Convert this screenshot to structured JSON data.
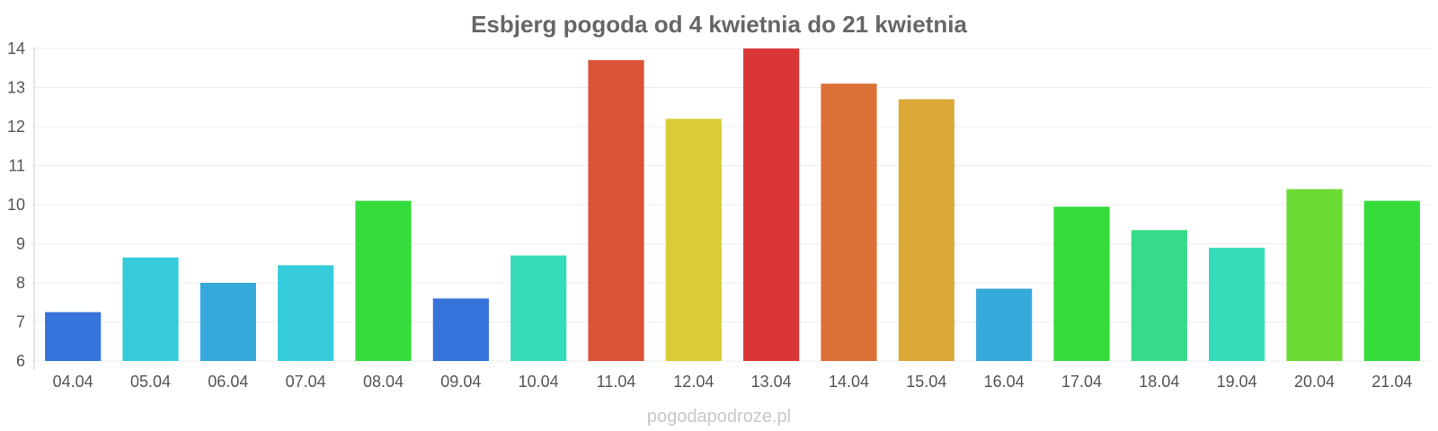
{
  "chart_data": {
    "type": "bar",
    "title": "Esbjerg pogoda od 4 kwietnia do 21 kwietnia",
    "xlabel": "",
    "ylabel": "",
    "ylim": [
      6,
      14
    ],
    "yticks": [
      6,
      7,
      8,
      9,
      10,
      11,
      12,
      13,
      14
    ],
    "grid": true,
    "categories": [
      "04.04",
      "05.04",
      "06.04",
      "07.04",
      "08.04",
      "09.04",
      "10.04",
      "11.04",
      "12.04",
      "13.04",
      "14.04",
      "15.04",
      "16.04",
      "17.04",
      "18.04",
      "19.04",
      "20.04",
      "21.04"
    ],
    "values": [
      7.25,
      8.65,
      8.0,
      8.45,
      10.1,
      7.6,
      8.7,
      13.7,
      12.2,
      14.0,
      13.1,
      12.7,
      7.85,
      9.95,
      9.35,
      8.9,
      10.4,
      10.1
    ],
    "colors": [
      "#3674db",
      "#36cbdb",
      "#36a9db",
      "#36cbdb",
      "#36db3c",
      "#3674db",
      "#36dbb9",
      "#db5236",
      "#dbcb36",
      "#db3636",
      "#db7036",
      "#dba736",
      "#36a9db",
      "#36db3c",
      "#36db8a",
      "#36dbb9",
      "#6bdb36",
      "#36db3c"
    ]
  },
  "watermark": "pogodapodroze.pl"
}
